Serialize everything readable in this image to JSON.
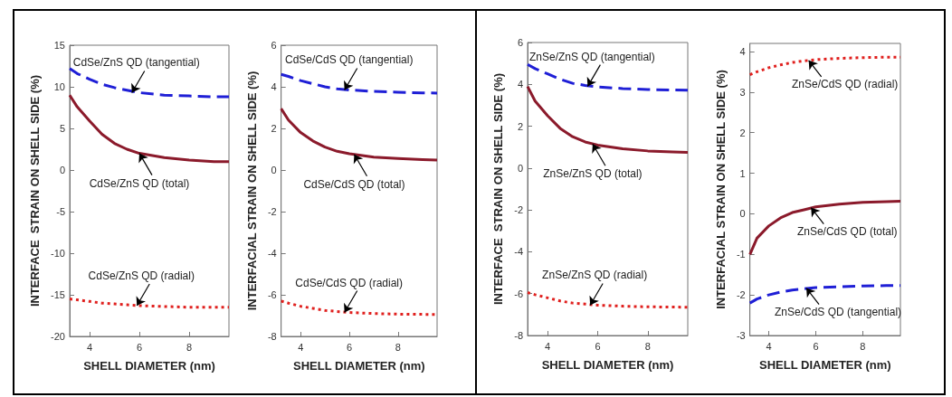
{
  "chart_data": [
    {
      "type": "line",
      "xlabel": "SHELL DIAMETER (nm)",
      "ylabel": "INTERFACE  STRAIN ON SHELL SIDE (%)",
      "xlim": [
        3.2,
        9.6
      ],
      "xticks": [
        4,
        6,
        8
      ],
      "ylim": [
        -20,
        15
      ],
      "yticks": [
        -20,
        -15,
        -10,
        -5,
        0,
        5,
        10,
        15
      ],
      "grid": false,
      "marker": "none",
      "series": [
        {
          "color": "#1f1fd6",
          "line_style": "dashed",
          "x": [
            3.2,
            3.5,
            4,
            4.5,
            5,
            5.5,
            6,
            7,
            8,
            9,
            9.6
          ],
          "values": [
            12.2,
            11.6,
            10.9,
            10.3,
            9.9,
            9.6,
            9.3,
            9.0,
            8.9,
            8.8,
            8.8
          ]
        },
        {
          "color": "#8b1a2b",
          "line_style": "solid",
          "x": [
            3.2,
            3.5,
            4,
            4.5,
            5,
            5.5,
            6,
            7,
            8,
            9,
            9.6
          ],
          "values": [
            9.0,
            7.6,
            5.9,
            4.3,
            3.2,
            2.5,
            2.0,
            1.5,
            1.2,
            1.0,
            1.0
          ]
        },
        {
          "color": "#e0201e",
          "line_style": "dotted",
          "x": [
            3.2,
            3.5,
            4,
            4.5,
            5,
            5.5,
            6,
            7,
            8,
            9,
            9.6
          ],
          "values": [
            -15.5,
            -15.6,
            -15.8,
            -16.0,
            -16.1,
            -16.2,
            -16.3,
            -16.4,
            -16.5,
            -16.5,
            -16.5
          ]
        }
      ],
      "annotations": [
        {
          "text": "CdSe/ZnS QD (tangential)",
          "x": 5.7,
          "y": 9.3
        },
        {
          "text": "CdSe/ZnS QD (total)",
          "x": 6.0,
          "y": 2.0
        },
        {
          "text": "CdSe/ZnS QD (radial)",
          "x": 5.9,
          "y": -16.3
        }
      ]
    },
    {
      "type": "line",
      "xlabel": "SHELL DIAMETER (nm)",
      "ylabel": "INTERFACIAL STRAIN ON SHELL SIDE (%)",
      "xlim": [
        3.2,
        9.6
      ],
      "xticks": [
        4,
        6,
        8
      ],
      "ylim": [
        -8,
        6
      ],
      "yticks": [
        -8,
        -6,
        -4,
        -2,
        0,
        2,
        4,
        6
      ],
      "grid": false,
      "marker": "none",
      "series": [
        {
          "color": "#1f1fd6",
          "line_style": "dashed",
          "x": [
            3.2,
            3.5,
            4,
            4.5,
            5,
            5.5,
            6,
            7,
            8,
            9,
            9.6
          ],
          "values": [
            4.6,
            4.5,
            4.3,
            4.15,
            4.0,
            3.9,
            3.85,
            3.78,
            3.74,
            3.71,
            3.7
          ]
        },
        {
          "color": "#8b1a2b",
          "line_style": "solid",
          "x": [
            3.2,
            3.5,
            4,
            4.5,
            5,
            5.5,
            6,
            7,
            8,
            9,
            9.6
          ],
          "values": [
            2.95,
            2.4,
            1.8,
            1.4,
            1.1,
            0.9,
            0.78,
            0.62,
            0.55,
            0.5,
            0.48
          ]
        },
        {
          "color": "#e0201e",
          "line_style": "dotted",
          "x": [
            3.2,
            3.5,
            4,
            4.5,
            5,
            5.5,
            6,
            7,
            8,
            9,
            9.6
          ],
          "values": [
            -6.3,
            -6.4,
            -6.55,
            -6.65,
            -6.75,
            -6.8,
            -6.85,
            -6.9,
            -6.93,
            -6.94,
            -6.95
          ]
        }
      ],
      "annotations": [
        {
          "text": "CdSe/CdS QD (tangential)",
          "x": 5.8,
          "y": 3.85
        },
        {
          "text": "CdSe/CdS QD (total)",
          "x": 6.2,
          "y": 0.75
        },
        {
          "text": "CdSe/CdS QD (radial)",
          "x": 5.8,
          "y": -6.85
        }
      ]
    },
    {
      "type": "line",
      "xlabel": "SHELL DIAMETER (nm)",
      "ylabel": "INTERFACE  STRAIN ON SHELL SIDE (%)",
      "xlim": [
        3.2,
        9.6
      ],
      "xticks": [
        4,
        6,
        8
      ],
      "ylim": [
        -8,
        6
      ],
      "yticks": [
        -8,
        -6,
        -4,
        -2,
        0,
        2,
        4,
        6
      ],
      "grid": false,
      "marker": "none",
      "series": [
        {
          "color": "#1f1fd6",
          "line_style": "dashed",
          "x": [
            3.2,
            3.5,
            4,
            4.5,
            5,
            5.5,
            6,
            7,
            8,
            9,
            9.6
          ],
          "values": [
            4.95,
            4.75,
            4.5,
            4.25,
            4.05,
            3.95,
            3.88,
            3.8,
            3.75,
            3.73,
            3.72
          ]
        },
        {
          "color": "#8b1a2b",
          "line_style": "solid",
          "x": [
            3.2,
            3.5,
            4,
            4.5,
            5,
            5.5,
            6,
            7,
            8,
            9,
            9.6
          ],
          "values": [
            3.9,
            3.2,
            2.5,
            1.9,
            1.5,
            1.25,
            1.1,
            0.92,
            0.82,
            0.77,
            0.75
          ]
        },
        {
          "color": "#e0201e",
          "line_style": "dotted",
          "x": [
            3.2,
            3.5,
            4,
            4.5,
            5,
            5.5,
            6,
            7,
            8,
            9,
            9.6
          ],
          "values": [
            -5.95,
            -6.05,
            -6.2,
            -6.35,
            -6.45,
            -6.5,
            -6.55,
            -6.6,
            -6.63,
            -6.64,
            -6.65
          ]
        }
      ],
      "annotations": [
        {
          "text": "ZnSe/ZnS QD (tangential)",
          "x": 5.6,
          "y": 3.9
        },
        {
          "text": "ZnSe/ZnS QD (total)",
          "x": 5.8,
          "y": 1.15
        },
        {
          "text": "ZnSe/ZnS QD (radial)",
          "x": 5.7,
          "y": -6.55
        }
      ]
    },
    {
      "type": "line",
      "xlabel": "SHELL DIAMETER (nm)",
      "ylabel": "INTERFACIAL STRAIN ON SHELL SIDE (%)",
      "xlim": [
        3.2,
        9.6
      ],
      "xticks": [
        4,
        6,
        8
      ],
      "ylim": [
        -3,
        4.2
      ],
      "yticks": [
        -3,
        -2,
        -1,
        0,
        1,
        2,
        3,
        4
      ],
      "grid": false,
      "marker": "none",
      "series": [
        {
          "color": "#e0201e",
          "line_style": "dotted",
          "x": [
            3.2,
            3.5,
            4,
            4.5,
            5,
            5.5,
            6,
            7,
            8,
            9,
            9.6
          ],
          "values": [
            3.43,
            3.5,
            3.6,
            3.67,
            3.73,
            3.77,
            3.8,
            3.83,
            3.85,
            3.86,
            3.86
          ]
        },
        {
          "color": "#8b1a2b",
          "line_style": "solid",
          "x": [
            3.2,
            3.5,
            4,
            4.5,
            5,
            5.5,
            6,
            7,
            8,
            9,
            9.6
          ],
          "values": [
            -1.0,
            -0.6,
            -0.3,
            -0.1,
            0.03,
            0.1,
            0.17,
            0.24,
            0.28,
            0.3,
            0.31
          ]
        },
        {
          "color": "#1f1fd6",
          "line_style": "dashed",
          "x": [
            3.2,
            3.5,
            4,
            4.5,
            5,
            5.5,
            6,
            7,
            8,
            9,
            9.6
          ],
          "values": [
            -2.2,
            -2.1,
            -2.0,
            -1.93,
            -1.88,
            -1.85,
            -1.82,
            -1.8,
            -1.78,
            -1.77,
            -1.77
          ]
        }
      ],
      "annotations": [
        {
          "text": "ZnSe/CdS QD (radial)",
          "x": 5.7,
          "y": 3.78
        },
        {
          "text": "ZnSe/CdS QD (total)",
          "x": 5.8,
          "y": 0.15
        },
        {
          "text": "ZnSe/CdS QD (tangential)",
          "x": 5.6,
          "y": -1.83
        }
      ]
    }
  ]
}
